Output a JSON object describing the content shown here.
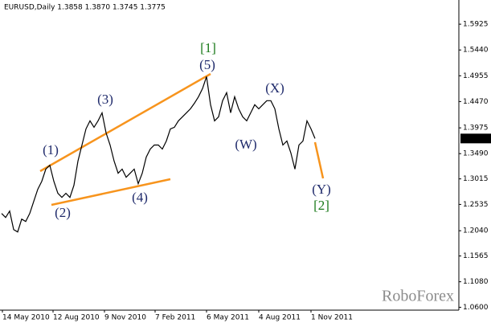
{
  "chart_data": {
    "type": "line",
    "header": "EURUSD,Daily  1.3858 1.3870 1.3745 1.3775",
    "watermark": "RoboForex",
    "color": "#000000",
    "values": [
      1.2364,
      1.2289,
      1.241,
      1.2061,
      1.2016,
      1.2258,
      1.2213,
      1.2364,
      1.2592,
      1.2819,
      1.297,
      1.3198,
      1.3273,
      1.297,
      1.2743,
      1.2667,
      1.2743,
      1.2667,
      1.2895,
      1.3349,
      1.3652,
      1.3955,
      1.4107,
      1.3986,
      1.4107,
      1.4258,
      1.388,
      1.3652,
      1.3349,
      1.3122,
      1.3198,
      1.3046,
      1.3122,
      1.3198,
      1.2925,
      1.3122,
      1.3425,
      1.3577,
      1.3652,
      1.3652,
      1.3577,
      1.3728,
      1.3955,
      1.3986,
      1.4107,
      1.4183,
      1.4258,
      1.4334,
      1.444,
      1.4561,
      1.4713,
      1.494,
      1.441,
      1.4107,
      1.4183,
      1.4486,
      1.4637,
      1.4258,
      1.4561,
      1.4334,
      1.4183,
      1.4107,
      1.4258,
      1.441,
      1.4334,
      1.441,
      1.4486,
      1.4486,
      1.4334,
      1.3955,
      1.3652,
      1.3728,
      1.3501,
      1.3198,
      1.3652,
      1.3728,
      1.4107,
      1.3955,
      1.3775
    ],
    "last_price": 1.3775,
    "xlim": [
      -0.4,
      113.8
    ],
    "xticks": [
      {
        "value": 0.2,
        "label": "14 May 2010"
      },
      {
        "value": 12.8,
        "label": "12 Aug 2010"
      },
      {
        "value": 25.6,
        "label": "9 Nov 2010"
      },
      {
        "value": 38.2,
        "label": "7 Feb 2011"
      },
      {
        "value": 51,
        "label": "6 May 2011"
      },
      {
        "value": 64,
        "label": "4 Aug 2011"
      },
      {
        "value": 77,
        "label": "1 Nov 2011"
      }
    ],
    "ylim": [
      1.0546,
      1.638
    ],
    "yticks": [
      1.5925,
      {
        "value": 1.544,
        "label": "1.5440"
      },
      1.4955,
      {
        "value": 1.447,
        "label": "1.4470"
      },
      1.3975,
      {
        "value": 1.349,
        "label": "1.3490"
      },
      1.3015,
      1.2535,
      {
        "value": 1.204,
        "label": "1.2040"
      },
      1.1565,
      {
        "value": 1.108,
        "label": "1.1080"
      },
      {
        "value": 1.06,
        "label": "1.0600"
      }
    ],
    "waves": [
      "(1)",
      "(2)",
      "(3)",
      "(4)",
      "(5)",
      "[1]",
      "(W)",
      "(X)",
      "(Y)",
      "[2]"
    ]
  }
}
